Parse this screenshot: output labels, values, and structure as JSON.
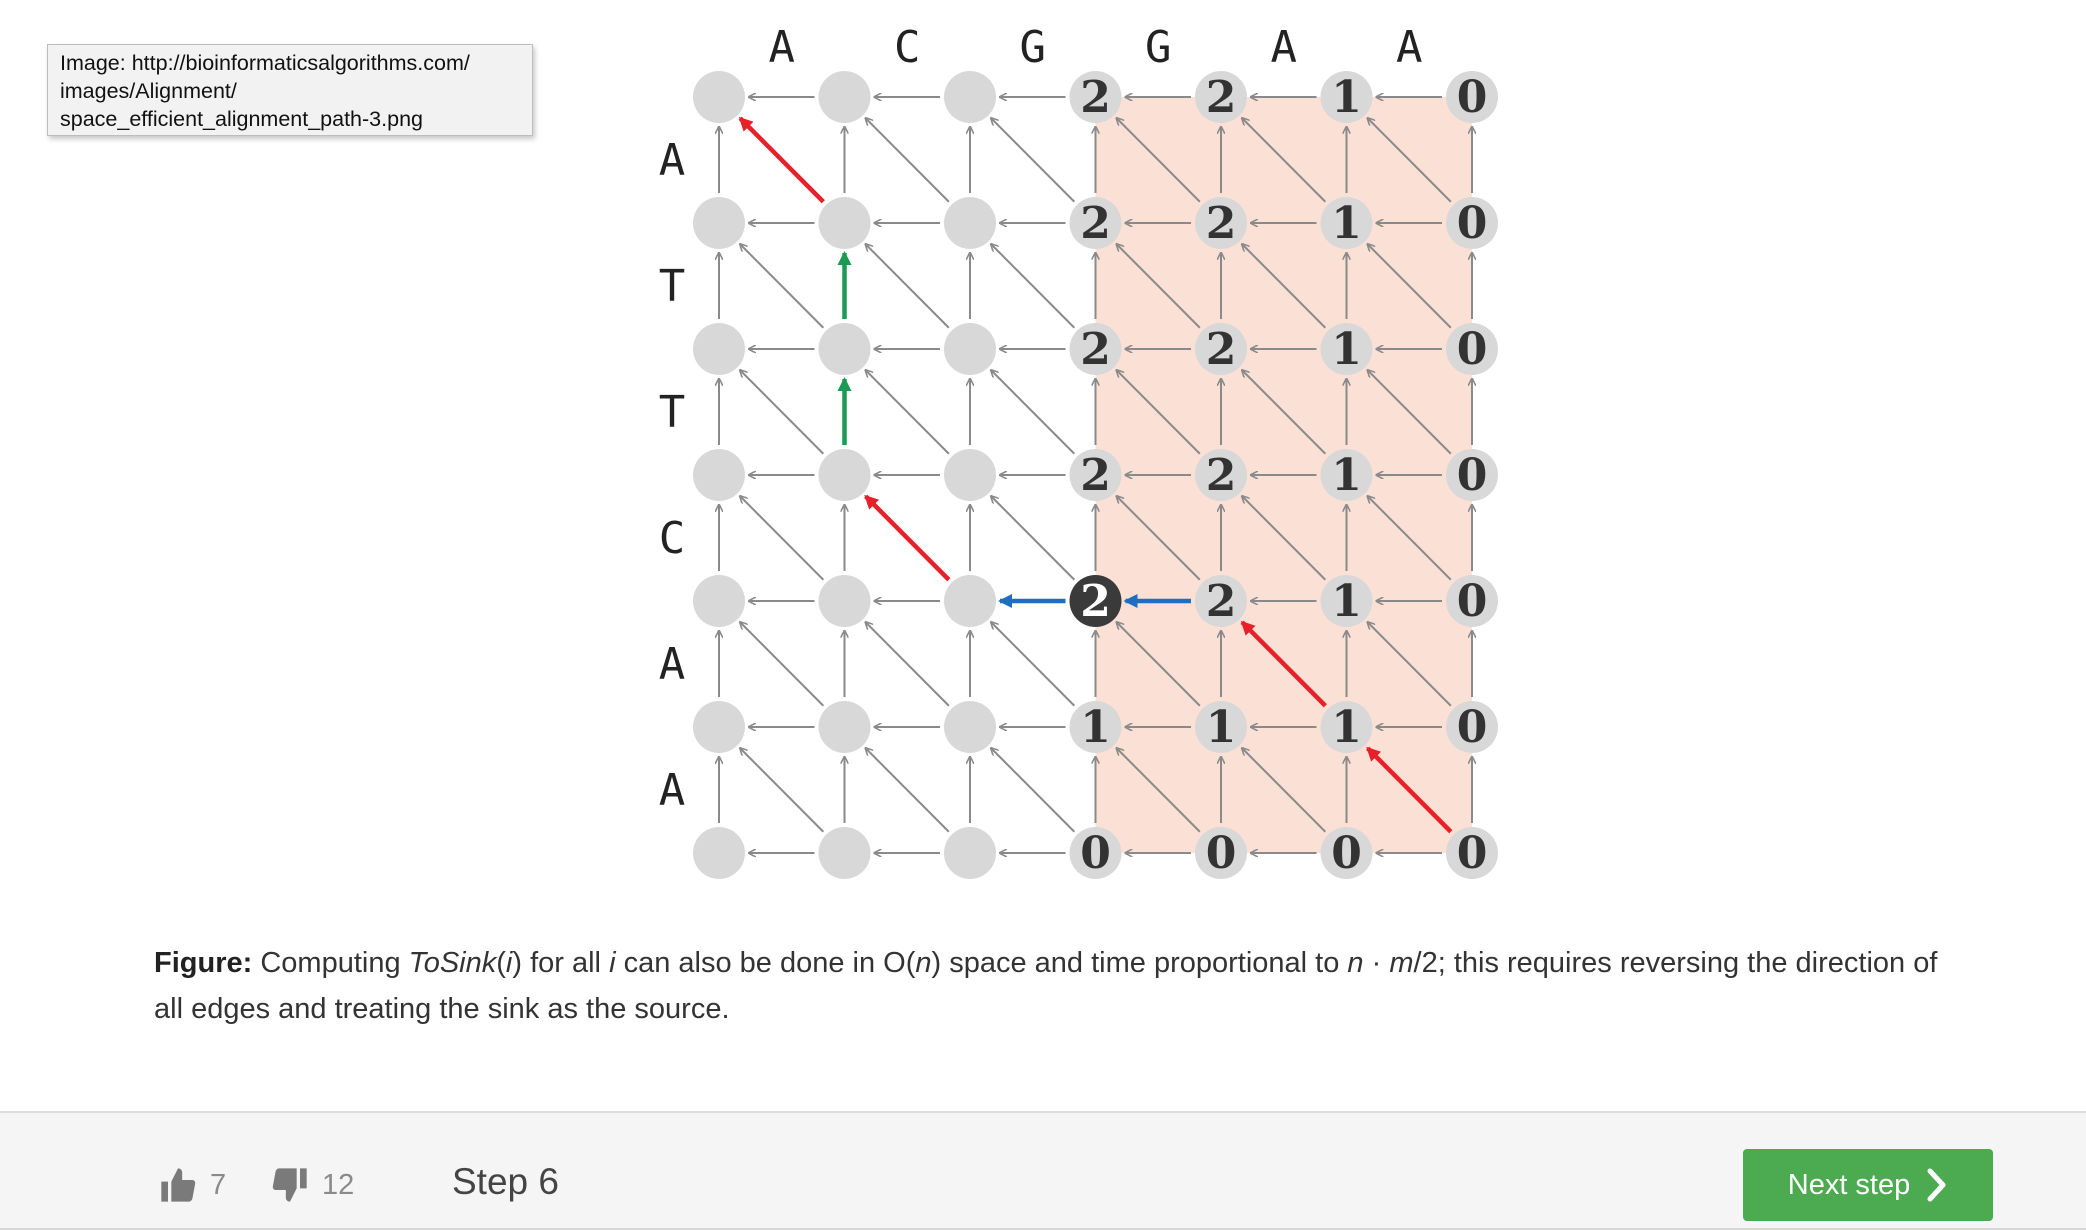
{
  "tooltip": {
    "lines": [
      "Image: http://bioinformaticsalgorithms.com/",
      "images/Alignment/",
      "space_efficient_alignment_path-3.png"
    ]
  },
  "grid": {
    "columns": [
      "A",
      "C",
      "G",
      "G",
      "A",
      "A"
    ],
    "rows": [
      "A",
      "T",
      "T",
      "C",
      "A",
      "A"
    ],
    "node_values": [
      [
        "",
        "",
        "",
        "2",
        "2",
        "1",
        "0"
      ],
      [
        "",
        "",
        "",
        "2",
        "2",
        "1",
        "0"
      ],
      [
        "",
        "",
        "",
        "2",
        "2",
        "1",
        "0"
      ],
      [
        "",
        "",
        "",
        "2",
        "2",
        "1",
        "0"
      ],
      [
        "",
        "",
        "",
        "2",
        "2",
        "1",
        "0"
      ],
      [
        "",
        "",
        "",
        "1",
        "1",
        "1",
        "0"
      ],
      [
        "",
        "",
        "",
        "0",
        "0",
        "0",
        "0"
      ]
    ],
    "highlighted_node": {
      "row": 4,
      "col": 3,
      "value": "2"
    },
    "shaded_columns": [
      3,
      6
    ],
    "colored_edges": [
      {
        "from": [
          1,
          1
        ],
        "to": [
          0,
          0
        ],
        "color": "red"
      },
      {
        "from": [
          2,
          1
        ],
        "to": [
          1,
          1
        ],
        "color": "green"
      },
      {
        "from": [
          3,
          1
        ],
        "to": [
          2,
          1
        ],
        "color": "green"
      },
      {
        "from": [
          4,
          2
        ],
        "to": [
          3,
          1
        ],
        "color": "red"
      },
      {
        "from": [
          4,
          3
        ],
        "to": [
          4,
          2
        ],
        "color": "blue"
      },
      {
        "from": [
          4,
          4
        ],
        "to": [
          4,
          3
        ],
        "color": "blue"
      },
      {
        "from": [
          5,
          5
        ],
        "to": [
          4,
          4
        ],
        "color": "red"
      },
      {
        "from": [
          6,
          6
        ],
        "to": [
          5,
          5
        ],
        "color": "red"
      }
    ],
    "colors": {
      "node": "#d8d8d8",
      "edge": "#8a8a8a",
      "shade": "#fbe0d6",
      "red": "#e8202a",
      "green": "#1a9a52",
      "blue": "#1f6fc0",
      "highlight": "#3a3a3a"
    }
  },
  "caption": {
    "label": "Figure:",
    "t1": " Computing ",
    "fn": "ToSink",
    "t2": "(",
    "i1": "i",
    "t3": ") for all ",
    "i2": "i",
    "t4": " can also be done in O(",
    "n1": "n",
    "t5": ") space and time proportional to ",
    "n2": "n",
    "t6": " · ",
    "m": "m",
    "t7": "/2; this requires reversing the direction of all edges and treating the sink as the source."
  },
  "footer": {
    "likes": "7",
    "dislikes": "12",
    "step": "Step 6",
    "next_label": "Next step",
    "accent": "#4cab50"
  }
}
